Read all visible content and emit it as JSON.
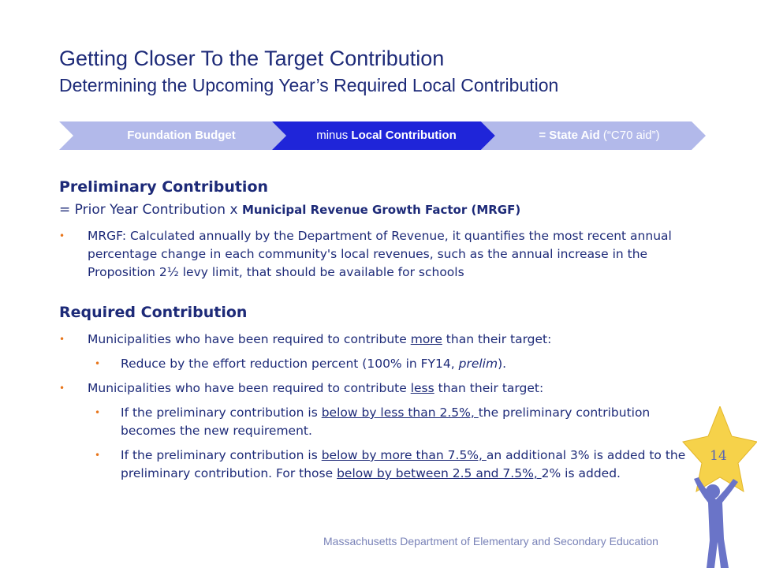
{
  "header": {
    "title": "Getting Closer To the Target Contribution",
    "subtitle": "Determining the Upcoming Year’s Required Local Contribution"
  },
  "process": {
    "step1": "Foundation Budget",
    "step2_prefix": "minus ",
    "step2_bold": "Local Contribution",
    "step3_bold": "= State Aid",
    "step3_rest": " (“C70 aid”)",
    "colors": {
      "step1": "#b2b9ea",
      "step2": "#1f25d9",
      "step3": "#b2b9ea"
    }
  },
  "preliminary": {
    "heading": "Preliminary Contribution",
    "formula_prefix": "= Prior Year Contribution x ",
    "formula_bold": "Municipal Revenue Growth Factor (MRGF)",
    "bullet": "MRGF: Calculated annually by the Department of Revenue, it quantifies the most recent annual percentage change in each community's local revenues, such as the annual increase in the Proposition 2½ levy limit, that should be available for schools"
  },
  "required": {
    "heading": "Required Contribution",
    "b1_pre": "Municipalities who have been required to contribute ",
    "b1_u": "more",
    "b1_post": " than their target:",
    "b1a_pre": "Reduce by the effort reduction percent (100% in FY14, ",
    "b1a_i": "prelim",
    "b1a_post": ").",
    "b2_pre": "Municipalities who have been required to contribute ",
    "b2_u": "less",
    "b2_post": " than their target:",
    "b2a_pre": "If the preliminary contribution is ",
    "b2a_u": "below by less than 2.5%, ",
    "b2a_post": "the preliminary contribution becomes the new requirement.",
    "b2b_pre": "If the preliminary contribution is ",
    "b2b_u1": "below by more than 7.5%, ",
    "b2b_mid": "an additional 3% is added to the preliminary contribution.  For those ",
    "b2b_u2": "below by between 2.5 and 7.5%, ",
    "b2b_post": "2% is added."
  },
  "footer": {
    "text": "Massachusetts Department of Elementary and Secondary Education",
    "page_number": "14"
  },
  "colors": {
    "accent_bullet": "#e8761c",
    "title": "#1d2a78",
    "star": "#f6d24a",
    "figure": "#6a74c8"
  }
}
